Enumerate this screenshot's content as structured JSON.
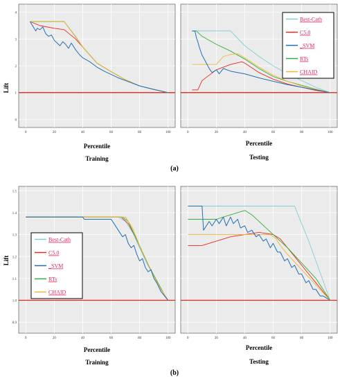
{
  "figure": {
    "panel_a_label": "(a)",
    "panel_b_label": "(b)"
  },
  "legend_entries": [
    {
      "name": "Best-Cath",
      "color": "#7ecfd6"
    },
    {
      "name": "C5.0",
      "color": "#e8281e"
    },
    {
      "name": "SVM",
      "color": "#1f6fb5"
    },
    {
      "name": "RTs",
      "color": "#2fae3c"
    },
    {
      "name": "CHAID",
      "color": "#f2b632"
    }
  ],
  "legend_display": [
    "Best-Cath",
    "C5.0",
    "_SVM",
    "RTs",
    "CHAID"
  ],
  "colors": {
    "plot_background": "#ebebeb",
    "grid": "#ffffff",
    "baseline": "#e8281e",
    "legend_text": "#e0245e",
    "frame": "#000000"
  },
  "chart_data": [
    {
      "type": "line",
      "id": "a-training",
      "xlabel": "Percentile",
      "ylabel": "Lift",
      "caption": "Training",
      "xlim": [
        -5,
        105
      ],
      "ylim": [
        -0.3,
        4.3
      ],
      "xticks": [
        0,
        20,
        40,
        60,
        80,
        100
      ],
      "yticks": [
        0,
        1,
        2,
        3,
        4
      ],
      "ytick_labels": [
        "0",
        "1",
        "2",
        "3",
        "4"
      ],
      "hline": 1,
      "legend": false,
      "series": [
        {
          "name": "Best-Cath",
          "x": [
            3,
            27,
            35,
            40,
            50,
            60,
            70,
            80,
            90,
            100
          ],
          "y": [
            3.65,
            3.65,
            3.1,
            2.7,
            2.1,
            1.78,
            1.48,
            1.25,
            1.12,
            1.0
          ]
        },
        {
          "name": "C5.0",
          "x": [
            3,
            10,
            20,
            27,
            35,
            40,
            50,
            60,
            70,
            80,
            90,
            100
          ],
          "y": [
            3.65,
            3.5,
            3.4,
            3.35,
            3.0,
            2.7,
            2.1,
            1.78,
            1.48,
            1.25,
            1.12,
            1.0
          ]
        },
        {
          "name": "RTs",
          "x": [
            3,
            27,
            35,
            40,
            50,
            60,
            70,
            80,
            90,
            100
          ],
          "y": [
            3.65,
            3.65,
            3.08,
            2.7,
            2.1,
            1.78,
            1.48,
            1.25,
            1.12,
            1.0
          ]
        },
        {
          "name": "CHAID",
          "x": [
            3,
            27,
            35,
            40,
            50,
            60,
            70,
            80,
            90,
            100
          ],
          "y": [
            3.65,
            3.65,
            3.08,
            2.7,
            2.1,
            1.78,
            1.48,
            1.25,
            1.12,
            1.0
          ]
        },
        {
          "name": "SVM",
          "x": [
            3,
            7,
            8,
            10,
            12,
            14,
            16,
            18,
            20,
            22,
            24,
            26,
            28,
            30,
            32,
            35,
            38,
            40,
            45,
            50,
            55,
            60,
            65,
            70,
            80,
            90,
            100
          ],
          "y": [
            3.65,
            3.3,
            3.4,
            3.35,
            3.45,
            3.2,
            3.1,
            3.15,
            2.95,
            2.85,
            2.75,
            2.9,
            2.8,
            2.65,
            2.85,
            2.6,
            2.4,
            2.3,
            2.15,
            1.95,
            1.8,
            1.68,
            1.55,
            1.45,
            1.25,
            1.12,
            1.0
          ]
        }
      ]
    },
    {
      "type": "line",
      "id": "a-testing",
      "xlabel": "Percentile",
      "ylabel": "",
      "caption": "Testing",
      "xlim": [
        -5,
        105
      ],
      "ylim": [
        -0.3,
        4.3
      ],
      "xticks": [
        0,
        20,
        40,
        60,
        80,
        100
      ],
      "yticks": [
        0,
        1,
        2,
        3,
        4
      ],
      "ytick_labels": [],
      "hline": 1,
      "legend": true,
      "legend_position": "top-right",
      "series": [
        {
          "name": "Best-Cath",
          "x": [
            3,
            30,
            40,
            50,
            60,
            70,
            80,
            90,
            100
          ],
          "y": [
            3.3,
            3.3,
            2.75,
            2.35,
            2.0,
            1.7,
            1.45,
            1.2,
            1.0
          ]
        },
        {
          "name": "C5.0",
          "x": [
            3,
            7,
            10,
            20,
            30,
            38,
            40,
            50,
            60,
            70,
            80,
            90,
            100
          ],
          "y": [
            1.1,
            1.1,
            1.45,
            1.85,
            2.05,
            2.15,
            2.1,
            1.75,
            1.5,
            1.32,
            1.2,
            1.08,
            1.0
          ]
        },
        {
          "name": "RTs",
          "x": [
            3,
            6,
            10,
            20,
            30,
            40,
            50,
            60,
            70,
            80,
            90,
            100
          ],
          "y": [
            3.3,
            3.3,
            3.1,
            2.8,
            2.55,
            2.25,
            1.9,
            1.6,
            1.42,
            1.27,
            1.13,
            1.0
          ]
        },
        {
          "name": "CHAID",
          "x": [
            3,
            20,
            25,
            30,
            35,
            40,
            50,
            60,
            70,
            80,
            90,
            100
          ],
          "y": [
            2.05,
            2.05,
            2.35,
            2.42,
            2.45,
            2.3,
            1.95,
            1.65,
            1.42,
            1.25,
            1.12,
            1.0
          ]
        },
        {
          "name": "SVM",
          "x": [
            3,
            5,
            6,
            7,
            8,
            10,
            13,
            15,
            17,
            20,
            22,
            25,
            30,
            35,
            40,
            50,
            60,
            70,
            80,
            90,
            100
          ],
          "y": [
            3.3,
            3.3,
            3.05,
            2.9,
            2.7,
            2.4,
            2.1,
            1.9,
            1.75,
            1.85,
            1.7,
            1.9,
            1.8,
            1.75,
            1.7,
            1.55,
            1.42,
            1.3,
            1.2,
            1.1,
            1.0
          ]
        }
      ]
    },
    {
      "type": "line",
      "id": "b-training",
      "xlabel": "Percentile",
      "ylabel": "Lift",
      "caption": "Training",
      "xlim": [
        -5,
        105
      ],
      "ylim": [
        0.85,
        1.52
      ],
      "xticks": [
        0,
        20,
        40,
        60,
        80,
        100
      ],
      "yticks": [
        0.9,
        1.0,
        1.1,
        1.2,
        1.3,
        1.4,
        1.5
      ],
      "ytick_labels": [
        "0.9",
        "1.0",
        "1.1",
        "1.2",
        "1.3",
        "1.4",
        "1.5"
      ],
      "hline": 1.0,
      "legend": true,
      "legend_position": "middle-left",
      "series": [
        {
          "name": "Best-Cath",
          "x": [
            0,
            65,
            70,
            75,
            80,
            85,
            90,
            95,
            100
          ],
          "y": [
            1.38,
            1.38,
            1.36,
            1.31,
            1.24,
            1.17,
            1.11,
            1.05,
            1.0
          ]
        },
        {
          "name": "C5.0",
          "x": [
            0,
            67,
            72,
            77,
            82,
            87,
            92,
            97,
            100
          ],
          "y": [
            1.38,
            1.38,
            1.35,
            1.29,
            1.22,
            1.15,
            1.09,
            1.03,
            1.0
          ]
        },
        {
          "name": "RTs",
          "x": [
            0,
            68,
            72,
            77,
            82,
            87,
            92,
            97,
            100
          ],
          "y": [
            1.38,
            1.38,
            1.36,
            1.29,
            1.22,
            1.15,
            1.09,
            1.03,
            1.0
          ]
        },
        {
          "name": "CHAID",
          "x": [
            0,
            70,
            75,
            80,
            85,
            90,
            95,
            100
          ],
          "y": [
            1.38,
            1.38,
            1.33,
            1.25,
            1.18,
            1.11,
            1.05,
            1.0
          ]
        },
        {
          "name": "SVM",
          "x": [
            0,
            40,
            41,
            50,
            60,
            62,
            65,
            68,
            70,
            72,
            74,
            76,
            78,
            80,
            82,
            84,
            86,
            88,
            90,
            92,
            95,
            100
          ],
          "y": [
            1.38,
            1.38,
            1.37,
            1.37,
            1.37,
            1.35,
            1.32,
            1.29,
            1.3,
            1.26,
            1.24,
            1.25,
            1.21,
            1.18,
            1.19,
            1.15,
            1.13,
            1.14,
            1.1,
            1.08,
            1.04,
            1.0
          ]
        }
      ]
    },
    {
      "type": "line",
      "id": "b-testing",
      "xlabel": "Percentile",
      "ylabel": "",
      "caption": "Testing",
      "xlim": [
        -5,
        105
      ],
      "ylim": [
        0.85,
        1.52
      ],
      "xticks": [
        0,
        20,
        40,
        60,
        80,
        100
      ],
      "yticks": [
        0.9,
        1.0,
        1.1,
        1.2,
        1.3,
        1.4,
        1.5
      ],
      "ytick_labels": [],
      "hline": 1.0,
      "legend": false,
      "series": [
        {
          "name": "Best-Cath",
          "x": [
            0,
            75,
            80,
            85,
            90,
            95,
            100
          ],
          "y": [
            1.43,
            1.43,
            1.35,
            1.27,
            1.18,
            1.09,
            1.0
          ]
        },
        {
          "name": "C5.0",
          "x": [
            0,
            10,
            20,
            30,
            40,
            50,
            60,
            65,
            70,
            75,
            80,
            85,
            90,
            95,
            100
          ],
          "y": [
            1.25,
            1.25,
            1.27,
            1.29,
            1.3,
            1.31,
            1.3,
            1.28,
            1.24,
            1.2,
            1.16,
            1.12,
            1.08,
            1.04,
            1.0
          ]
        },
        {
          "name": "RTs",
          "x": [
            0,
            20,
            30,
            40,
            45,
            50,
            55,
            60,
            70,
            80,
            90,
            95,
            100
          ],
          "y": [
            1.37,
            1.37,
            1.39,
            1.41,
            1.39,
            1.36,
            1.33,
            1.3,
            1.24,
            1.17,
            1.1,
            1.05,
            1.0
          ]
        },
        {
          "name": "CHAID",
          "x": [
            0,
            50,
            58,
            62,
            65,
            70,
            80,
            90,
            100
          ],
          "y": [
            1.3,
            1.3,
            1.3,
            1.28,
            1.25,
            1.21,
            1.14,
            1.07,
            1.0
          ]
        },
        {
          "name": "SVM",
          "x": [
            0,
            10,
            11,
            15,
            17,
            20,
            22,
            25,
            27,
            30,
            32,
            35,
            37,
            40,
            42,
            45,
            48,
            50,
            53,
            55,
            58,
            60,
            63,
            65,
            68,
            70,
            73,
            75,
            78,
            80,
            83,
            85,
            88,
            90,
            93,
            95,
            100
          ],
          "y": [
            1.43,
            1.43,
            1.32,
            1.36,
            1.34,
            1.37,
            1.35,
            1.38,
            1.34,
            1.38,
            1.35,
            1.37,
            1.33,
            1.34,
            1.31,
            1.32,
            1.29,
            1.3,
            1.27,
            1.28,
            1.24,
            1.26,
            1.22,
            1.22,
            1.18,
            1.19,
            1.15,
            1.16,
            1.12,
            1.12,
            1.08,
            1.09,
            1.05,
            1.05,
            1.02,
            1.02,
            1.0
          ]
        }
      ]
    }
  ]
}
